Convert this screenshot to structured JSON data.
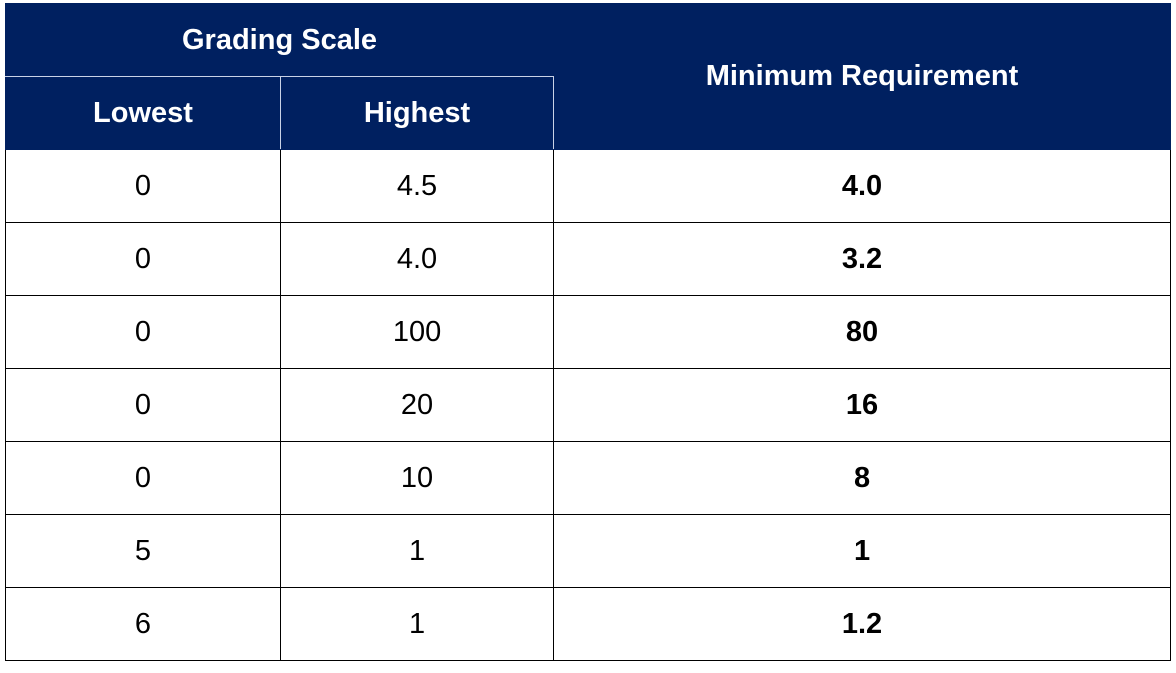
{
  "table": {
    "header": {
      "group": "Grading Scale",
      "lowest": "Lowest",
      "highest": "Highest",
      "requirement": "Minimum Requirement"
    },
    "rows": [
      [
        "0",
        "4.5",
        "4.0"
      ],
      [
        "0",
        "4.0",
        "3.2"
      ],
      [
        "0",
        "100",
        "80"
      ],
      [
        "0",
        "20",
        "16"
      ],
      [
        "0",
        "10",
        "8"
      ],
      [
        "5",
        "1",
        "1"
      ],
      [
        "6",
        "1",
        "1.2"
      ]
    ]
  }
}
